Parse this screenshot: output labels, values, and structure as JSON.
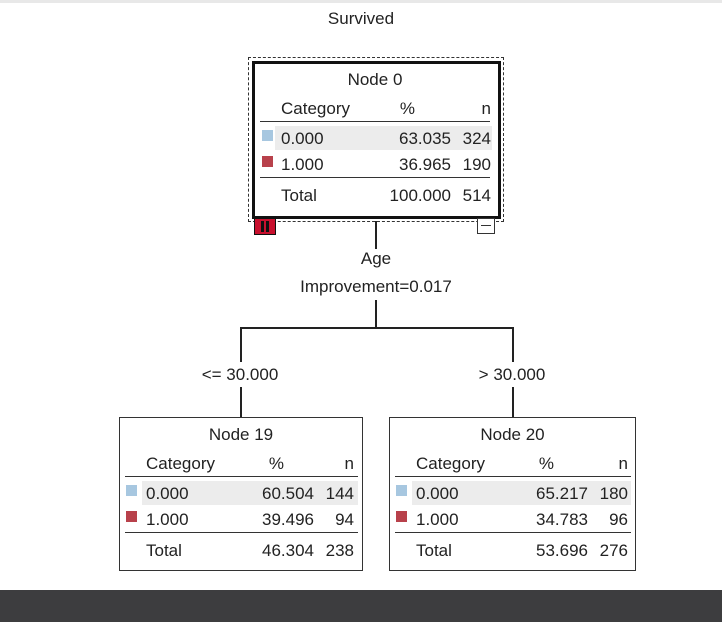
{
  "tree": {
    "title": "Survived",
    "colors": {
      "category_0": "#a7c7e0",
      "category_1": "#b8414b"
    },
    "root": {
      "title": "Node 0",
      "headers": {
        "category": "Category",
        "percent": "%",
        "n": "n"
      },
      "rows": [
        {
          "category": "0.000",
          "percent": "63.035",
          "n": "324"
        },
        {
          "category": "1.000",
          "percent": "36.965",
          "n": "190"
        }
      ],
      "total": {
        "label": "Total",
        "percent": "100.000",
        "n": "514"
      }
    },
    "split": {
      "variable": "Age",
      "improvement": "Improvement=0.017"
    },
    "branches": [
      {
        "condition": "<= 30.000",
        "node": {
          "title": "Node 19",
          "headers": {
            "category": "Category",
            "percent": "%",
            "n": "n"
          },
          "rows": [
            {
              "category": "0.000",
              "percent": "60.504",
              "n": "144"
            },
            {
              "category": "1.000",
              "percent": "39.496",
              "n": "94"
            }
          ],
          "total": {
            "label": "Total",
            "percent": "46.304",
            "n": "238"
          }
        }
      },
      {
        "condition": "> 30.000",
        "node": {
          "title": "Node 20",
          "headers": {
            "category": "Category",
            "percent": "%",
            "n": "n"
          },
          "rows": [
            {
              "category": "0.000",
              "percent": "65.217",
              "n": "180"
            },
            {
              "category": "1.000",
              "percent": "34.783",
              "n": "96"
            }
          ],
          "total": {
            "label": "Total",
            "percent": "53.696",
            "n": "276"
          }
        }
      }
    ]
  }
}
